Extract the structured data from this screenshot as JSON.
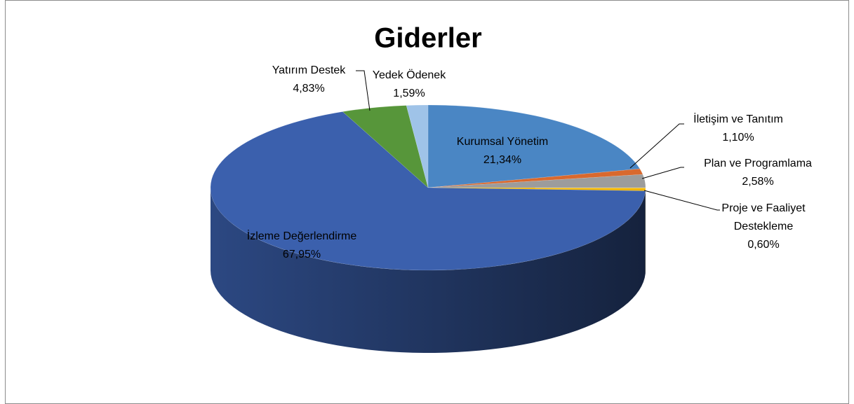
{
  "chart_data": {
    "type": "pie",
    "title": "Giderler",
    "categories": [
      "Kurumsal Yönetim",
      "İletişim ve Tanıtım",
      "Plan ve Programlama",
      "Proje ve Faaliyet Destekleme",
      "İzleme Değerlendirme",
      "Yatırım Destek",
      "Yedek Ödenek"
    ],
    "values": [
      21.34,
      1.1,
      2.58,
      0.6,
      67.95,
      4.83,
      1.59
    ],
    "value_labels": [
      "21,34%",
      "1,10%",
      "2,58%",
      "0,60%",
      "67,95%",
      "4,83%",
      "1,59%"
    ],
    "colors": [
      "#4a86c4",
      "#d9692e",
      "#9c9c9c",
      "#f2b600",
      "#3b60ad",
      "#57963a",
      "#9fc3e8"
    ]
  }
}
